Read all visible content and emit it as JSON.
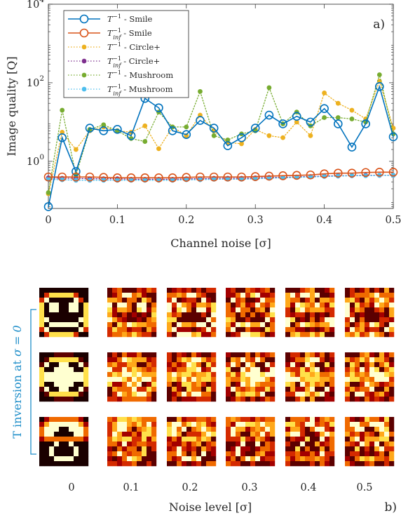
{
  "chart_data": [
    {
      "type": "line",
      "panel_label": "a)",
      "xlabel": "Channel noise [σ]",
      "ylabel": "Image quality [Q]",
      "xlim": [
        0,
        0.5
      ],
      "ylim_log10": [
        -1.2,
        4
      ],
      "yscale": "log",
      "x_ticks": [
        0,
        0.1,
        0.2,
        0.3,
        0.4,
        0.5
      ],
      "x_tick_labels": [
        "0",
        "0.1",
        "0.2",
        "0.3",
        "0.4",
        "0.5"
      ],
      "y_tick_labels": [
        {
          "base": "10",
          "exp": "0",
          "value": 1
        },
        {
          "base": "10",
          "exp": "2",
          "value": 100
        },
        {
          "base": "10",
          "exp": "4",
          "value": 10000
        }
      ],
      "legend_position": "top-left",
      "x": [
        0,
        0.02,
        0.04,
        0.06,
        0.08,
        0.1,
        0.12,
        0.14,
        0.16,
        0.18,
        0.2,
        0.22,
        0.24,
        0.26,
        0.28,
        0.3,
        0.32,
        0.34,
        0.36,
        0.38,
        0.4,
        0.42,
        0.44,
        0.46,
        0.48,
        0.5
      ],
      "series": [
        {
          "name_main": "T",
          "name_sup": "−1",
          "name_sub": "",
          "name_suffix": " - Smile",
          "color": "#0072BD",
          "style": "solid-open-circle",
          "values": [
            0.07,
            4,
            0.55,
            7,
            6,
            6.5,
            4.5,
            40,
            23,
            6,
            4.8,
            11,
            7,
            2.5,
            4,
            7,
            15,
            9,
            14,
            10,
            22,
            9,
            2.3,
            9,
            80,
            4.2
          ]
        },
        {
          "name_main": "T",
          "name_sup": "−1",
          "name_sub": "inf",
          "name_suffix": " - Smile",
          "color": "#D95319",
          "style": "solid-open-circle",
          "values": [
            0.4,
            0.4,
            0.4,
            0.4,
            0.39,
            0.38,
            0.38,
            0.38,
            0.38,
            0.38,
            0.39,
            0.4,
            0.4,
            0.4,
            0.4,
            0.41,
            0.42,
            0.43,
            0.44,
            0.45,
            0.48,
            0.5,
            0.5,
            0.52,
            0.53,
            0.53
          ]
        },
        {
          "name_main": "T",
          "name_sup": "−1",
          "name_sub": "",
          "name_suffix": " - Circle+",
          "color": "#EDB120",
          "style": "dotted-dot",
          "values": [
            0.15,
            5.5,
            2,
            6,
            7.5,
            6,
            5.5,
            8,
            2.1,
            7.5,
            4.5,
            15,
            6,
            3,
            2.8,
            6.5,
            4.5,
            4,
            10,
            4.5,
            55,
            30,
            20,
            12,
            110,
            7
          ]
        },
        {
          "name_main": "T",
          "name_sup": "−1",
          "name_sub": "inf",
          "name_suffix": " - Circle+",
          "color": "#7E2F8E",
          "style": "dotted-dot",
          "values": [
            0.38,
            0.37,
            0.37,
            0.36,
            0.36,
            0.36,
            0.35,
            0.35,
            0.35,
            0.35,
            0.36,
            0.36,
            0.37,
            0.37,
            0.37,
            0.38,
            0.39,
            0.39,
            0.4,
            0.41,
            0.42,
            0.43,
            0.43,
            0.44,
            0.44,
            0.44
          ]
        },
        {
          "name_main": "T",
          "name_sup": "−1",
          "name_sub": "",
          "name_suffix": " - Mushroom",
          "color": "#77AC30",
          "style": "dotted-dot",
          "values": [
            0.16,
            20,
            0.45,
            6.5,
            8.5,
            6,
            3.8,
            3.2,
            18,
            7.5,
            7.5,
            60,
            4.5,
            3.5,
            5,
            6,
            75,
            9,
            18,
            8,
            13,
            13,
            12,
            10,
            160,
            5
          ]
        },
        {
          "name_main": "T",
          "name_sup": "−1",
          "name_sub": "inf",
          "name_suffix": " - Mushroom",
          "color": "#4DBEEE",
          "style": "dotted-dot",
          "values": [
            0.35,
            0.34,
            0.33,
            0.33,
            0.33,
            0.33,
            0.33,
            0.33,
            0.33,
            0.33,
            0.34,
            0.34,
            0.35,
            0.35,
            0.35,
            0.36,
            0.37,
            0.38,
            0.39,
            0.4,
            0.41,
            0.42,
            0.43,
            0.43,
            0.44,
            0.44
          ]
        }
      ]
    },
    {
      "type": "heatmap",
      "panel_label": "b)",
      "xlabel": "Noise level [σ]",
      "ylabel_main": "T inversion at ",
      "ylabel_math": "σ = 0",
      "ylabel_color": "#1f8ec9",
      "columns": [
        "0",
        "0.1",
        "0.2",
        "0.3",
        "0.4",
        "0.5"
      ],
      "rows": 3,
      "grid_size": 10,
      "colormap": [
        "#1a0000",
        "#5c0000",
        "#a30000",
        "#d42a00",
        "#f06a00",
        "#ffa81a",
        "#ffe04a",
        "#ffffd0"
      ],
      "reference_images": [
        [
          "0000000000",
          "0366666300",
          "3700000730",
          "6077007706",
          "6077007706",
          "6000000006",
          "6700000076",
          "6077777706",
          "3700000073",
          "0366666300"
        ],
        [
          "0001111000",
          "0166666610",
          "1700770071",
          "6007777006",
          "6777777776",
          "6777777776",
          "6007777006",
          "1700770071",
          "0166666610",
          "0001111000"
        ],
        [
          "0244444420",
          "2577777752",
          "4777007774",
          "4770000774",
          "2444444442",
          "0007007000",
          "0070000700",
          "0070000700",
          "0007777000",
          "0000000000"
        ]
      ]
    }
  ]
}
